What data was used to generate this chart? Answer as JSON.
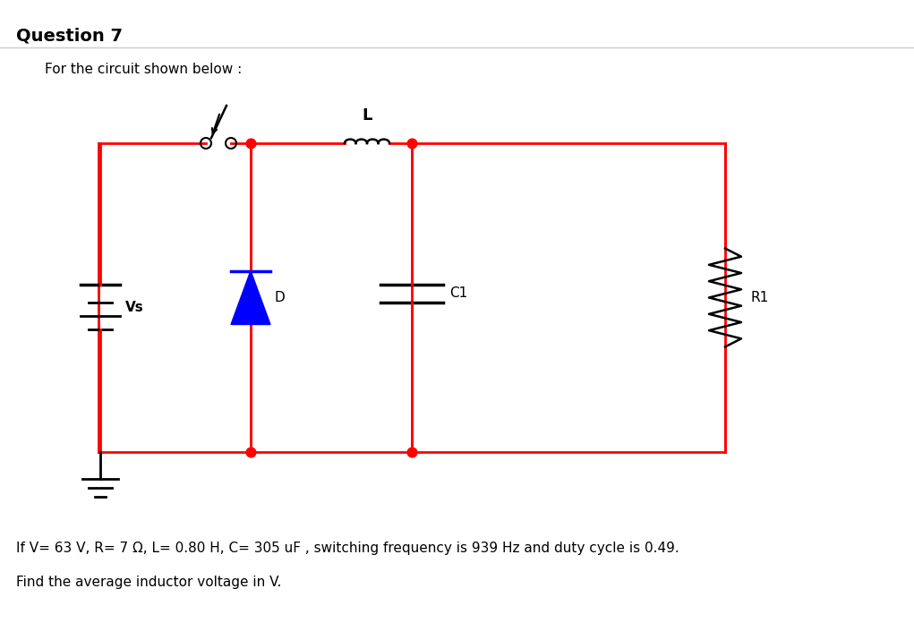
{
  "title": "Question 7",
  "subtitle": "For the circuit shown below :",
  "bottom_text1": "If V= 63 V, R= 7 Ω, L= 0.80 H, C= 305 uF , switching frequency is 939 Hz and duty cycle is 0.49.",
  "bottom_text2": "Find the average inductor voltage in V.",
  "circuit_color": "#FF0000",
  "bg_color": "#FFFFFF",
  "text_color": "#000000",
  "title_fontsize": 14,
  "body_fontsize": 11,
  "small_fontsize": 10
}
